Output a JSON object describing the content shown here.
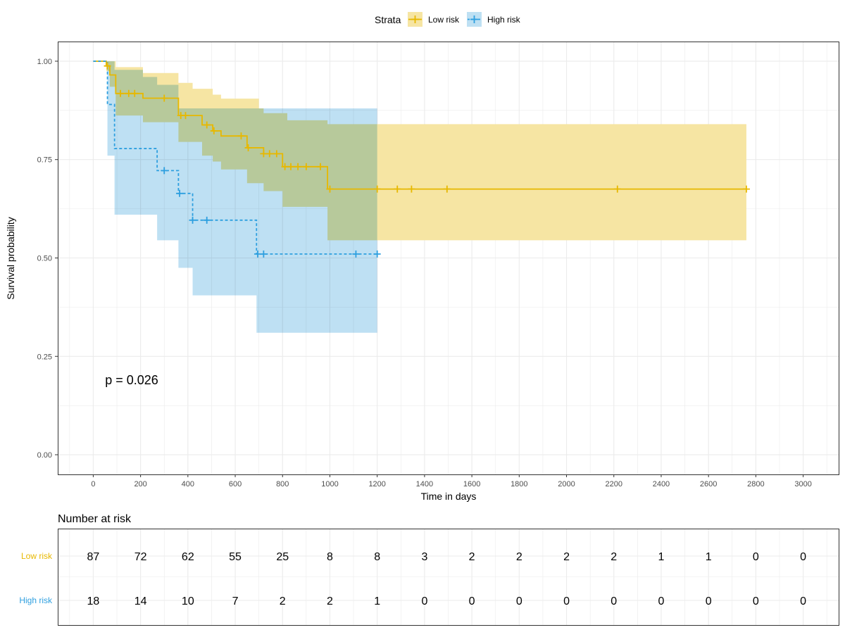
{
  "legend": {
    "title": "Strata",
    "placement": "top"
  },
  "colors": {
    "low_risk": "#E7B800",
    "high_risk": "#2E9FDF",
    "low_risk_band": "#F6E5A3",
    "high_risk_band": "#BEE0F3",
    "overlap_band": "#C3CFB3",
    "grid": "#EBEBEB"
  },
  "chart_data": {
    "type": "line",
    "subtype": "kaplan-meier",
    "xlabel": "Time in days",
    "ylabel": "Survival probability",
    "xlim": [
      -150,
      3150
    ],
    "ylim": [
      -0.05,
      1.05
    ],
    "x_ticks": [
      0,
      200,
      400,
      600,
      800,
      1000,
      1200,
      1400,
      1600,
      1800,
      2000,
      2200,
      2400,
      2600,
      2800,
      3000
    ],
    "y_ticks": [
      0,
      0.25,
      0.5,
      0.75,
      1.0
    ],
    "y_tick_labels": [
      "0.00",
      "0.25",
      "0.50",
      "0.75",
      "1.00"
    ],
    "grid": true,
    "annotation": "p = 0.026",
    "annotation_pos": [
      50,
      0.19
    ],
    "series": [
      {
        "name": "Low risk",
        "color": "#E7B800",
        "dash": false,
        "steps": [
          [
            0,
            1.0
          ],
          [
            55,
            0.988
          ],
          [
            70,
            0.965
          ],
          [
            95,
            0.918
          ],
          [
            210,
            0.906
          ],
          [
            360,
            0.862
          ],
          [
            460,
            0.838
          ],
          [
            505,
            0.823
          ],
          [
            540,
            0.81
          ],
          [
            650,
            0.78
          ],
          [
            720,
            0.765
          ],
          [
            800,
            0.732
          ],
          [
            990,
            0.675
          ],
          [
            2760,
            0.675
          ]
        ],
        "censored": [
          [
            60,
            0.988
          ],
          [
            115,
            0.918
          ],
          [
            150,
            0.918
          ],
          [
            175,
            0.918
          ],
          [
            300,
            0.906
          ],
          [
            370,
            0.862
          ],
          [
            390,
            0.862
          ],
          [
            480,
            0.838
          ],
          [
            510,
            0.823
          ],
          [
            625,
            0.81
          ],
          [
            655,
            0.78
          ],
          [
            720,
            0.765
          ],
          [
            745,
            0.765
          ],
          [
            775,
            0.765
          ],
          [
            810,
            0.732
          ],
          [
            835,
            0.732
          ],
          [
            865,
            0.732
          ],
          [
            900,
            0.732
          ],
          [
            960,
            0.732
          ],
          [
            1000,
            0.675
          ],
          [
            1200,
            0.675
          ],
          [
            1285,
            0.675
          ],
          [
            1345,
            0.675
          ],
          [
            1495,
            0.675
          ],
          [
            2215,
            0.675
          ],
          [
            2760,
            0.675
          ]
        ],
        "ci_upper": [
          [
            0,
            1.0
          ],
          [
            55,
            1.0
          ],
          [
            95,
            0.985
          ],
          [
            210,
            0.97
          ],
          [
            360,
            0.945
          ],
          [
            420,
            0.93
          ],
          [
            505,
            0.915
          ],
          [
            540,
            0.905
          ],
          [
            700,
            0.88
          ],
          [
            720,
            0.868
          ],
          [
            820,
            0.85
          ],
          [
            990,
            0.84
          ],
          [
            2760,
            0.84
          ]
        ],
        "ci_lower": [
          [
            0,
            1.0
          ],
          [
            55,
            0.975
          ],
          [
            70,
            0.935
          ],
          [
            95,
            0.862
          ],
          [
            210,
            0.845
          ],
          [
            360,
            0.795
          ],
          [
            460,
            0.76
          ],
          [
            505,
            0.745
          ],
          [
            540,
            0.725
          ],
          [
            650,
            0.69
          ],
          [
            720,
            0.67
          ],
          [
            800,
            0.63
          ],
          [
            990,
            0.545
          ],
          [
            2760,
            0.545
          ]
        ]
      },
      {
        "name": "High risk",
        "color": "#2E9FDF",
        "dash": true,
        "steps": [
          [
            0,
            1.0
          ],
          [
            60,
            0.89
          ],
          [
            90,
            0.778
          ],
          [
            270,
            0.722
          ],
          [
            360,
            0.664
          ],
          [
            420,
            0.596
          ],
          [
            690,
            0.51
          ],
          [
            1200,
            0.51
          ]
        ],
        "censored": [
          [
            300,
            0.722
          ],
          [
            365,
            0.664
          ],
          [
            420,
            0.596
          ],
          [
            480,
            0.596
          ],
          [
            695,
            0.51
          ],
          [
            720,
            0.51
          ],
          [
            1110,
            0.51
          ],
          [
            1200,
            0.51
          ]
        ],
        "ci_upper": [
          [
            0,
            1.0
          ],
          [
            60,
            1.0
          ],
          [
            90,
            0.978
          ],
          [
            210,
            0.96
          ],
          [
            270,
            0.94
          ],
          [
            360,
            0.88
          ],
          [
            1200,
            0.88
          ]
        ],
        "ci_lower": [
          [
            0,
            1.0
          ],
          [
            60,
            0.76
          ],
          [
            90,
            0.61
          ],
          [
            270,
            0.545
          ],
          [
            360,
            0.475
          ],
          [
            420,
            0.405
          ],
          [
            690,
            0.31
          ],
          [
            1200,
            0.31
          ]
        ]
      }
    ],
    "risk_table": {
      "title": "Number at risk",
      "times": [
        0,
        200,
        400,
        600,
        800,
        1000,
        1200,
        1400,
        1600,
        1800,
        2000,
        2200,
        2400,
        2600,
        2800,
        3000
      ],
      "rows": [
        {
          "label": "Low risk",
          "color": "#E7B800",
          "values": [
            87,
            72,
            62,
            55,
            25,
            8,
            8,
            3,
            2,
            2,
            2,
            2,
            1,
            1,
            0,
            0
          ]
        },
        {
          "label": "High risk",
          "color": "#2E9FDF",
          "values": [
            18,
            14,
            10,
            7,
            2,
            2,
            1,
            0,
            0,
            0,
            0,
            0,
            0,
            0,
            0,
            0
          ]
        }
      ]
    }
  }
}
